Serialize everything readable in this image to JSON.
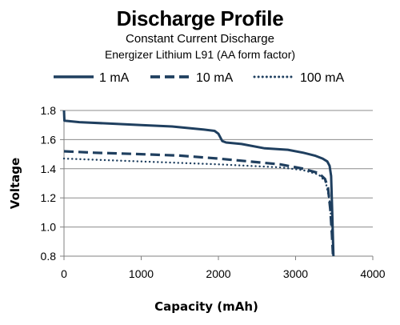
{
  "chart_data": {
    "type": "line",
    "title": "Discharge Profile",
    "subtitle_lines": [
      "Constant Current Discharge",
      "Energizer Lithium L91 (AA form factor)"
    ],
    "xlabel": "Capacity (mAh)",
    "ylabel": "Voltage",
    "xlim": [
      0,
      4000
    ],
    "ylim": [
      0.8,
      1.8
    ],
    "x_ticks": [
      "0",
      "1000",
      "2000",
      "3000",
      "4000"
    ],
    "y_ticks": [
      "0.8",
      "1.0",
      "1.2",
      "1.4",
      "1.6",
      "1.8"
    ],
    "x_tick_values": [
      0,
      1000,
      2000,
      3000,
      4000
    ],
    "y_tick_values": [
      0.8,
      1.0,
      1.2,
      1.4,
      1.6,
      1.8
    ],
    "grid": "horizontal",
    "legend_position": "top",
    "line_color": "#1f3f5f",
    "series": [
      {
        "name": "1 mA",
        "style": "solid",
        "points": [
          [
            0,
            1.8
          ],
          [
            5,
            1.73
          ],
          [
            200,
            1.72
          ],
          [
            600,
            1.71
          ],
          [
            1000,
            1.7
          ],
          [
            1400,
            1.69
          ],
          [
            1800,
            1.67
          ],
          [
            1950,
            1.66
          ],
          [
            2000,
            1.64
          ],
          [
            2050,
            1.59
          ],
          [
            2100,
            1.58
          ],
          [
            2300,
            1.57
          ],
          [
            2600,
            1.54
          ],
          [
            2900,
            1.53
          ],
          [
            3100,
            1.51
          ],
          [
            3250,
            1.49
          ],
          [
            3350,
            1.47
          ],
          [
            3410,
            1.45
          ],
          [
            3440,
            1.42
          ],
          [
            3460,
            1.35
          ],
          [
            3475,
            1.1
          ],
          [
            3485,
            0.9
          ],
          [
            3490,
            0.8
          ]
        ]
      },
      {
        "name": "10 mA",
        "style": "dashed",
        "points": [
          [
            0,
            1.52
          ],
          [
            400,
            1.51
          ],
          [
            1000,
            1.5
          ],
          [
            1500,
            1.49
          ],
          [
            2000,
            1.47
          ],
          [
            2400,
            1.45
          ],
          [
            2800,
            1.43
          ],
          [
            3100,
            1.4
          ],
          [
            3300,
            1.37
          ],
          [
            3380,
            1.33
          ],
          [
            3420,
            1.27
          ],
          [
            3450,
            1.12
          ],
          [
            3470,
            0.95
          ],
          [
            3485,
            0.8
          ]
        ]
      },
      {
        "name": "100 mA",
        "style": "dotted",
        "points": [
          [
            0,
            1.47
          ],
          [
            500,
            1.46
          ],
          [
            1000,
            1.45
          ],
          [
            1500,
            1.44
          ],
          [
            2000,
            1.43
          ],
          [
            2400,
            1.42
          ],
          [
            2800,
            1.41
          ],
          [
            3100,
            1.39
          ],
          [
            3300,
            1.36
          ],
          [
            3390,
            1.31
          ],
          [
            3440,
            1.18
          ],
          [
            3470,
            1.0
          ],
          [
            3490,
            0.8
          ]
        ]
      }
    ]
  }
}
